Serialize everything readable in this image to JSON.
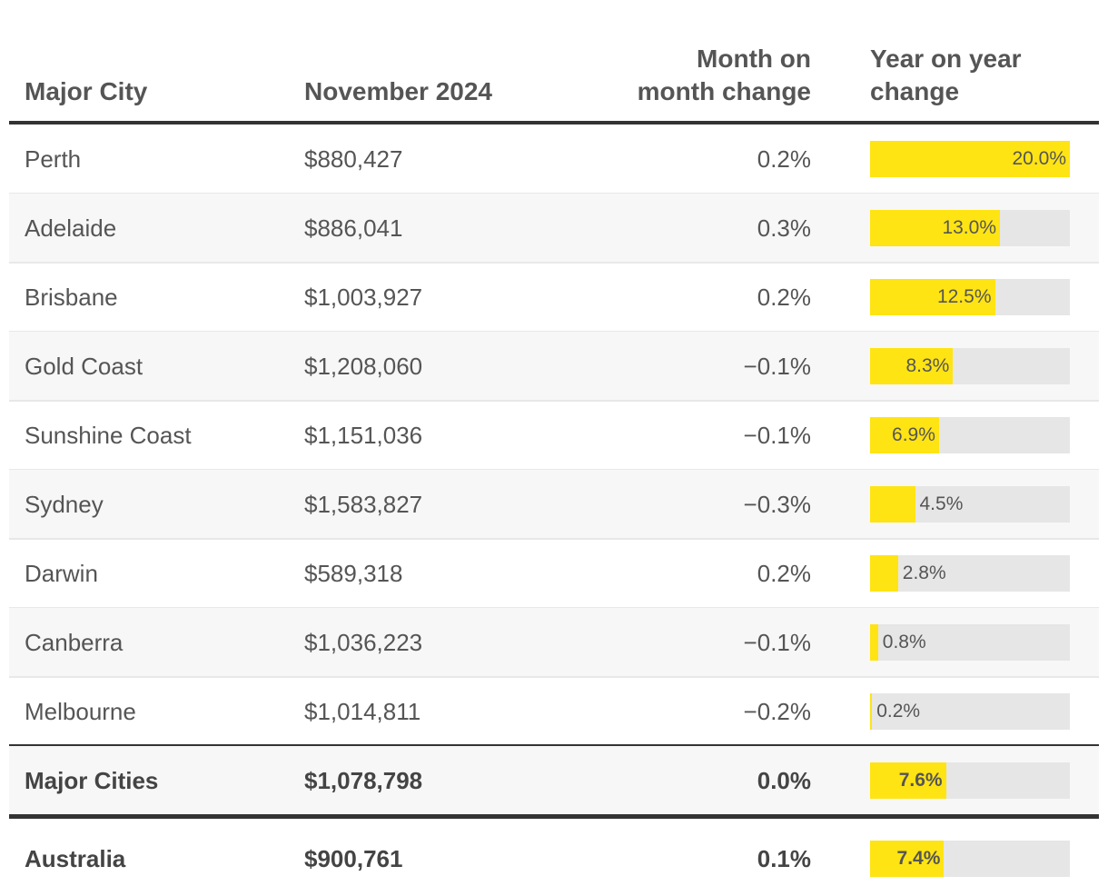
{
  "header": {
    "city": "Major City",
    "price": "November 2024",
    "mom": [
      "Month on",
      "month change"
    ],
    "yoy": [
      "Year on year",
      "change"
    ]
  },
  "rows": [
    {
      "city": "Perth",
      "price": "$880,427",
      "mom": "0.2%",
      "yoy": 20.0,
      "yoy_label": "20.0%"
    },
    {
      "city": "Adelaide",
      "price": "$886,041",
      "mom": "0.3%",
      "yoy": 13.0,
      "yoy_label": "13.0%"
    },
    {
      "city": "Brisbane",
      "price": "$1,003,927",
      "mom": "0.2%",
      "yoy": 12.5,
      "yoy_label": "12.5%"
    },
    {
      "city": "Gold Coast",
      "price": "$1,208,060",
      "mom": "−0.1%",
      "yoy": 8.3,
      "yoy_label": "8.3%"
    },
    {
      "city": "Sunshine Coast",
      "price": "$1,151,036",
      "mom": "−0.1%",
      "yoy": 6.9,
      "yoy_label": "6.9%"
    },
    {
      "city": "Sydney",
      "price": "$1,583,827",
      "mom": "−0.3%",
      "yoy": 4.5,
      "yoy_label": "4.5%"
    },
    {
      "city": "Darwin",
      "price": "$589,318",
      "mom": "0.2%",
      "yoy": 2.8,
      "yoy_label": "2.8%"
    },
    {
      "city": "Canberra",
      "price": "$1,036,223",
      "mom": "−0.1%",
      "yoy": 0.8,
      "yoy_label": "0.8%"
    },
    {
      "city": "Melbourne",
      "price": "$1,014,811",
      "mom": "−0.2%",
      "yoy": 0.2,
      "yoy_label": "0.2%"
    }
  ],
  "total_rows": [
    {
      "city": "Major Cities",
      "price": "$1,078,798",
      "mom": "0.0%",
      "yoy": 7.6,
      "yoy_label": "7.6%"
    },
    {
      "city": "Australia",
      "price": "$900,761",
      "mom": "0.1%",
      "yoy": 7.4,
      "yoy_label": "7.4%"
    }
  ],
  "bar_color": "#ffe414",
  "track_color": "#e6e6e6"
}
